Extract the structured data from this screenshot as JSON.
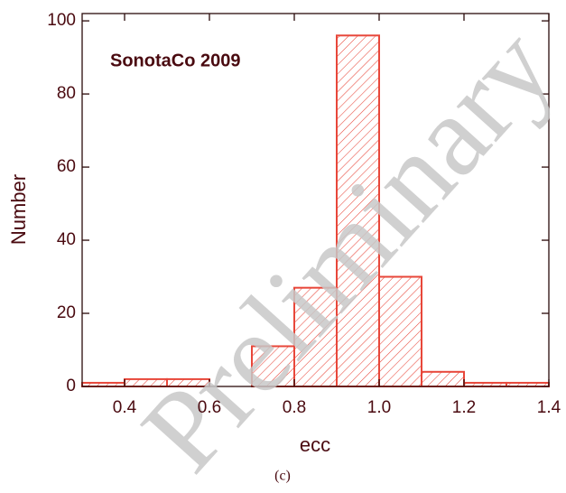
{
  "chart_data": {
    "type": "histogram",
    "annotation": "SonotaCo 2009",
    "xlabel": "ecc",
    "ylabel": "Number",
    "caption": "(c)",
    "watermark": "Preliminary",
    "bins": [
      0.3,
      0.4,
      0.5,
      0.6,
      0.7,
      0.8,
      0.9,
      1.0,
      1.1,
      1.2,
      1.3,
      1.4
    ],
    "counts": [
      1,
      2,
      2,
      0,
      11,
      27,
      96,
      30,
      4,
      1,
      1
    ],
    "color": "#e8473a",
    "xlim": [
      0.3,
      1.4
    ],
    "xticks": [
      0.4,
      0.6,
      0.8,
      {
        "value": 1.0,
        "label": "1.0"
      },
      1.2,
      1.4
    ],
    "ylim": [
      0,
      102
    ],
    "yticks": [
      0,
      20,
      40,
      60,
      80,
      100
    ],
    "grid": false
  }
}
